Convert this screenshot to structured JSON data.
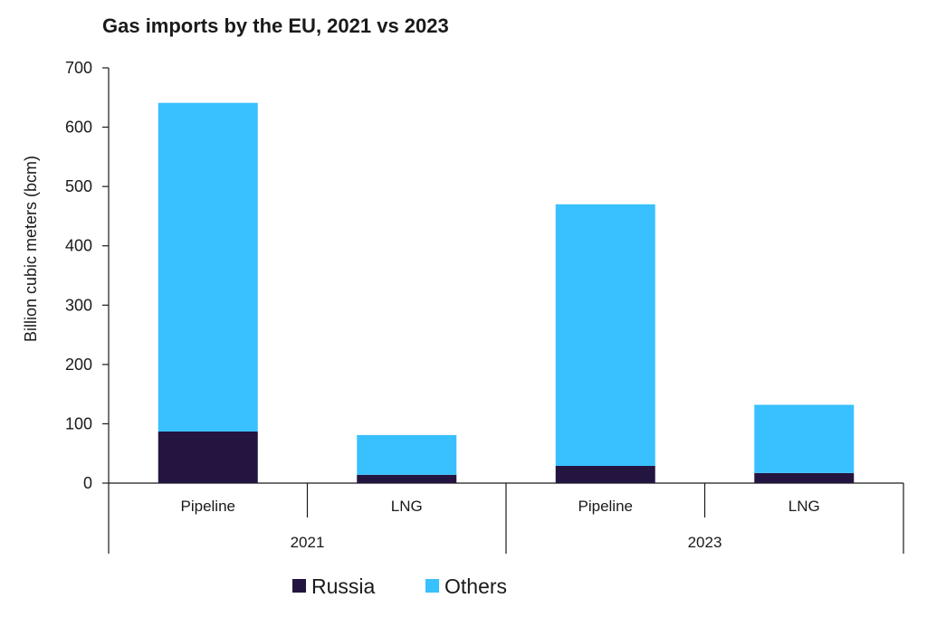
{
  "chart_data": {
    "type": "bar",
    "stacked": true,
    "title": "Gas imports by the EU, 2021 vs 2023",
    "ylabel": "Billion cubic meters (bcm)",
    "xlabel": "",
    "ylim": [
      0,
      700
    ],
    "yticks": [
      0,
      100,
      200,
      300,
      400,
      500,
      600,
      700
    ],
    "groups": [
      "2021",
      "2023"
    ],
    "categories": [
      "Pipeline",
      "LNG",
      "Pipeline",
      "LNG"
    ],
    "category_group": [
      0,
      0,
      1,
      1
    ],
    "series": [
      {
        "name": "Russia",
        "color": "#23153f",
        "values": [
          87,
          14,
          29,
          17
        ]
      },
      {
        "name": "Others",
        "color": "#38c0ff",
        "values": [
          554,
          67,
          441,
          115
        ]
      }
    ],
    "grid": false,
    "legend_position": "bottom"
  }
}
